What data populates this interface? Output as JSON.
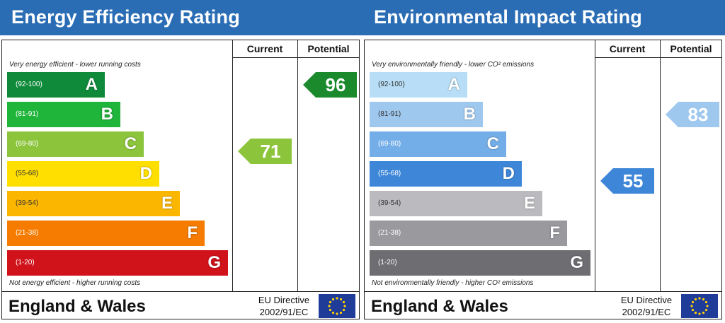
{
  "chart_data": [
    {
      "type": "bar",
      "title": "Energy Efficiency Rating",
      "columns": {
        "current": "Current",
        "potential": "Potential"
      },
      "top_note": "Very energy efficient - lower running costs",
      "bottom_note": "Not energy efficient - higher running costs",
      "bands": [
        {
          "letter": "A",
          "range": "(92-100)",
          "color": "#0f8a3a",
          "text_color": "#ffffff"
        },
        {
          "letter": "B",
          "range": "(81-91)",
          "color": "#1fb43a",
          "text_color": "#ffffff"
        },
        {
          "letter": "C",
          "range": "(69-80)",
          "color": "#8cc43c",
          "text_color": "#ffffff"
        },
        {
          "letter": "D",
          "range": "(55-68)",
          "color": "#ffdf00",
          "text_color": "#333333"
        },
        {
          "letter": "E",
          "range": "(39-54)",
          "color": "#fbb600",
          "text_color": "#333333"
        },
        {
          "letter": "F",
          "range": "(21-38)",
          "color": "#f57c00",
          "text_color": "#ffffff"
        },
        {
          "letter": "G",
          "range": "(1-20)",
          "color": "#d0121b",
          "text_color": "#ffffff"
        }
      ],
      "current": {
        "value": 71,
        "band": "C",
        "color": "#8cc43c"
      },
      "potential": {
        "value": 96,
        "band": "A",
        "color": "#1a8a2c"
      },
      "footer": {
        "region": "England & Wales",
        "directive_line1": "EU Directive",
        "directive_line2": "2002/91/EC"
      }
    },
    {
      "type": "bar",
      "title": "Environmental Impact Rating",
      "columns": {
        "current": "Current",
        "potential": "Potential"
      },
      "top_note": "Very environmentally friendly - lower CO² emissions",
      "bottom_note": "Not environmentally friendly - higher CO² emissions",
      "bands": [
        {
          "letter": "A",
          "range": "(92-100)",
          "color": "#b7def6",
          "text_color": "#333333"
        },
        {
          "letter": "B",
          "range": "(81-91)",
          "color": "#9fc8ef",
          "text_color": "#333333"
        },
        {
          "letter": "C",
          "range": "(69-80)",
          "color": "#74aee8",
          "text_color": "#ffffff"
        },
        {
          "letter": "D",
          "range": "(55-68)",
          "color": "#3d86d8",
          "text_color": "#ffffff"
        },
        {
          "letter": "E",
          "range": "(39-54)",
          "color": "#bbbbbf",
          "text_color": "#333333"
        },
        {
          "letter": "F",
          "range": "(21-38)",
          "color": "#9a999e",
          "text_color": "#ffffff"
        },
        {
          "letter": "G",
          "range": "(1-20)",
          "color": "#6d6d72",
          "text_color": "#ffffff"
        }
      ],
      "current": {
        "value": 55,
        "band": "D",
        "color": "#3d86d8"
      },
      "potential": {
        "value": 83,
        "band": "B",
        "color": "#9fc8ef"
      },
      "footer": {
        "region": "England & Wales",
        "directive_line1": "EU Directive",
        "directive_line2": "2002/91/EC"
      }
    }
  ]
}
